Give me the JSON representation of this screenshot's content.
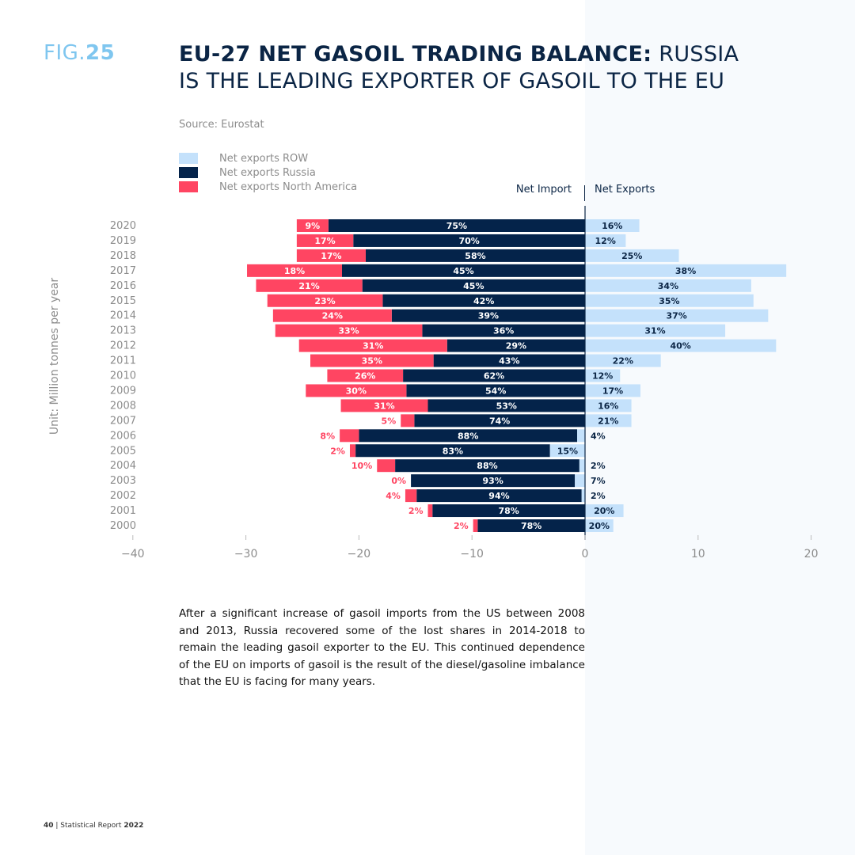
{
  "figure": {
    "prefix": "FIG.",
    "number": "25"
  },
  "title": {
    "bold": "EU-27 NET GASOIL TRADING BALANCE:",
    "rest": " RUSSIA IS THE LEADING EXPORTER OF GASOIL TO THE EU"
  },
  "source": "Source: Eurostat",
  "legend": [
    {
      "label": "Net exports ROW",
      "color": "#c4e1fb"
    },
    {
      "label": "Net exports Russia",
      "color": "#04234a"
    },
    {
      "label": "Net exports North America",
      "color": "#ff4562"
    }
  ],
  "header": {
    "net_import": "Net Import",
    "net_exports": "Net Exports"
  },
  "ylabel": "Unit: Million tonnes per year",
  "chart_data": {
    "type": "bar",
    "orientation": "horizontal",
    "stacked": true,
    "categories": [
      "2020",
      "2019",
      "2018",
      "2017",
      "2016",
      "2015",
      "2014",
      "2013",
      "2012",
      "2011",
      "2010",
      "2009",
      "2008",
      "2007",
      "2006",
      "2005",
      "2004",
      "2003",
      "2002",
      "2001",
      "2000"
    ],
    "xlim": [
      -40,
      20
    ],
    "xticks": [
      -40,
      -30,
      -20,
      -10,
      0,
      10,
      20
    ],
    "series": [
      {
        "name": "Net exports Russia",
        "color": "#04234a",
        "values": [
          -22.7,
          -20.5,
          -19.4,
          -21.5,
          -19.7,
          -17.9,
          -17.1,
          -14.4,
          -12.2,
          -13.4,
          -16.1,
          -15.8,
          -13.9,
          -15.1,
          -19.3,
          -17.2,
          -16.3,
          -14.5,
          -14.6,
          -13.5,
          -9.5
        ],
        "labels": [
          "75%",
          "70%",
          "58%",
          "45%",
          "45%",
          "42%",
          "39%",
          "36%",
          "29%",
          "43%",
          "62%",
          "54%",
          "53%",
          "74%",
          "88%",
          "83%",
          "88%",
          "93%",
          "94%",
          "78%",
          "78%"
        ]
      },
      {
        "name": "Net exports North America",
        "color": "#ff4562",
        "values": [
          -2.8,
          -5.0,
          -6.1,
          -8.4,
          -9.4,
          -10.2,
          -10.5,
          -13.0,
          -13.1,
          -10.9,
          -6.7,
          -8.9,
          -7.7,
          -1.2,
          -1.7,
          -0.5,
          -1.6,
          0,
          -1.0,
          -0.4,
          -0.4
        ],
        "labels": [
          "9%",
          "17%",
          "17%",
          "18%",
          "21%",
          "23%",
          "24%",
          "33%",
          "31%",
          "35%",
          "26%",
          "30%",
          "31%",
          "5%",
          "8%",
          "2%",
          "10%",
          "0%",
          "4%",
          "2%",
          "2%"
        ]
      },
      {
        "name": "Net exports ROW",
        "color": "#c4e1fb",
        "values": [
          4.8,
          3.6,
          8.3,
          17.8,
          14.7,
          14.9,
          16.2,
          12.4,
          16.9,
          6.7,
          3.1,
          4.9,
          4.1,
          4.1,
          -0.7,
          -3.1,
          -0.5,
          -0.9,
          -0.3,
          3.4,
          2.5
        ],
        "labels": [
          "16%",
          "12%",
          "25%",
          "38%",
          "34%",
          "35%",
          "37%",
          "31%",
          "40%",
          "22%",
          "12%",
          "17%",
          "16%",
          "21%",
          "4%",
          "15%",
          "2%",
          "7%",
          "2%",
          "20%",
          "20%"
        ]
      }
    ]
  },
  "body_text": "After a significant increase of gasoil imports from the US between 2008 and 2013, Russia recovered some of the lost shares in 2014-2018 to remain the leading gasoil exporter to the EU. This continued dependence of the EU on imports of gasoil is the result of the diesel/gasoline imbalance that the EU is facing for many years.",
  "footer": {
    "page": "40",
    "sep": " | Statistical Report ",
    "year": "2022"
  }
}
